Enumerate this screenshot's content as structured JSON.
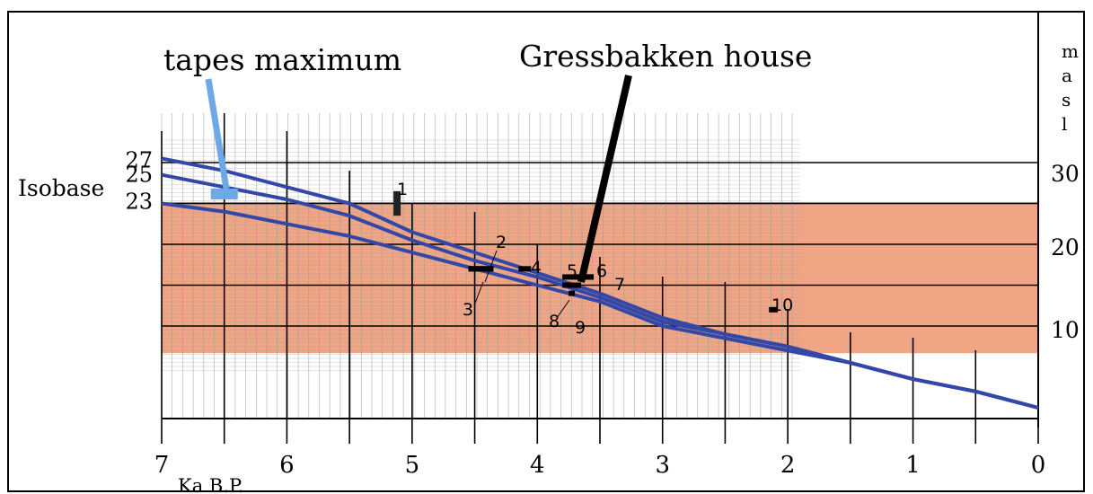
{
  "chart_data": {
    "type": "line",
    "xlabel": "Ka B.P.",
    "ylabel_letters": [
      "m",
      "a",
      "s",
      "l"
    ],
    "x_ticks": [
      "7",
      "6",
      "5",
      "4",
      "3",
      "2",
      "1",
      "0"
    ],
    "y_ticks": [
      "30",
      "20",
      "10"
    ],
    "xlim": [
      7,
      0
    ],
    "ylim": [
      0,
      32
    ],
    "isobase_label": "Isobase",
    "series": [
      {
        "name": "27",
        "x": [
          7,
          6.5,
          6,
          5.5,
          5,
          4.5,
          4,
          3.5,
          3,
          2.5,
          2,
          1.5,
          1,
          0.5,
          0
        ],
        "y": [
          30.5,
          29,
          27,
          25,
          21.5,
          19,
          16.5,
          14,
          11,
          9,
          7.5,
          5.5,
          3.5,
          2,
          0
        ]
      },
      {
        "name": "25",
        "x": [
          7,
          6.5,
          6,
          5.5,
          5,
          4.5,
          4,
          3.5,
          3,
          2.5,
          2,
          1.5,
          1,
          0.5,
          0
        ],
        "y": [
          28.5,
          27,
          25.5,
          23.5,
          20.5,
          18,
          16,
          13.5,
          10.5,
          9,
          7.5,
          5.5,
          3.5,
          2,
          0
        ]
      },
      {
        "name": "23",
        "x": [
          7,
          6.5,
          6,
          5.5,
          5,
          4.5,
          4,
          3.5,
          3,
          2.5,
          2,
          1.5,
          1,
          0.5,
          0
        ],
        "y": [
          25,
          24,
          22.5,
          21,
          19,
          17,
          15,
          13,
          10,
          8.5,
          7,
          5.5,
          3.5,
          2,
          0
        ]
      }
    ],
    "band": {
      "y_range": [
        8,
        26.5
      ],
      "x_range": [
        7,
        0
      ],
      "color": "#f0a584"
    },
    "samples": [
      {
        "label": "1",
        "x": 5.12,
        "y_range": [
          23.5,
          26.5
        ]
      },
      {
        "label": "2",
        "x_range": [
          4.55,
          4.35
        ],
        "y": 17
      },
      {
        "label": "3",
        "x_range": [
          4.55,
          4.35
        ],
        "y": 17
      },
      {
        "label": "4",
        "x_range": [
          4.15,
          4.05
        ],
        "y": 17
      },
      {
        "label": "5",
        "x_range": [
          3.8,
          3.6
        ],
        "y": 16
      },
      {
        "label": "6",
        "x_range": [
          3.7,
          3.55
        ],
        "y": 16
      },
      {
        "label": "7",
        "x_range": [
          3.6,
          3.55
        ],
        "y": 16
      },
      {
        "label": "8",
        "x_range": [
          3.8,
          3.65
        ],
        "y": 15
      },
      {
        "label": "9",
        "x_range": [
          3.75,
          3.7
        ],
        "y": 14
      },
      {
        "label": "10",
        "x_range": [
          2.15,
          2.08
        ],
        "y": 12
      }
    ],
    "annotations": [
      {
        "text": "tapes maximum",
        "points_to": [
          6.55,
          27
        ],
        "color": "#6fa8e6"
      },
      {
        "text": "Gressbakken house",
        "points_to": [
          3.65,
          16
        ],
        "color": "#000000"
      }
    ],
    "colors": {
      "curve": "#3347a6",
      "band": "#f0a584",
      "grid": "#9a9a9a",
      "tapes": "#6fa8e6"
    }
  }
}
